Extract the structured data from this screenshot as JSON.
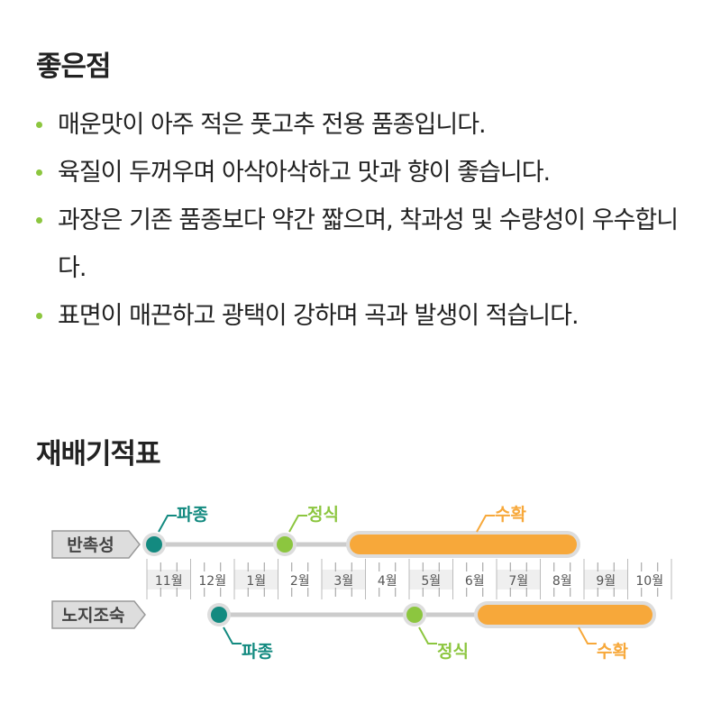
{
  "advantages": {
    "title": "좋은점",
    "items": [
      "매운맛이 아주 적은 풋고추 전용 품종입니다.",
      "육질이 두꺼우며 아삭아삭하고 맛과 향이 좋습니다.",
      "과장은 기존 품종보다 약간 짧으며, 착과성 및 수량성이 우수합니다.",
      "표면이 매끈하고 광택이 강하며 곡과 발생이 적습니다."
    ]
  },
  "schedule": {
    "title": "재배기적표",
    "months": [
      "11월",
      "12월",
      "1월",
      "2월",
      "3월",
      "4월",
      "5월",
      "6월",
      "7월",
      "8월",
      "9월",
      "10월"
    ],
    "colors": {
      "sowing": "#138a80",
      "planting": "#8cc63f",
      "harvest": "#f7a83a"
    },
    "rows": [
      {
        "label": "반촉성",
        "sowing_label": "파종",
        "planting_label": "정식",
        "harvest_label": "수확"
      },
      {
        "label": "노지조숙",
        "sowing_label": "파종",
        "planting_label": "정식",
        "harvest_label": "수확"
      }
    ]
  }
}
